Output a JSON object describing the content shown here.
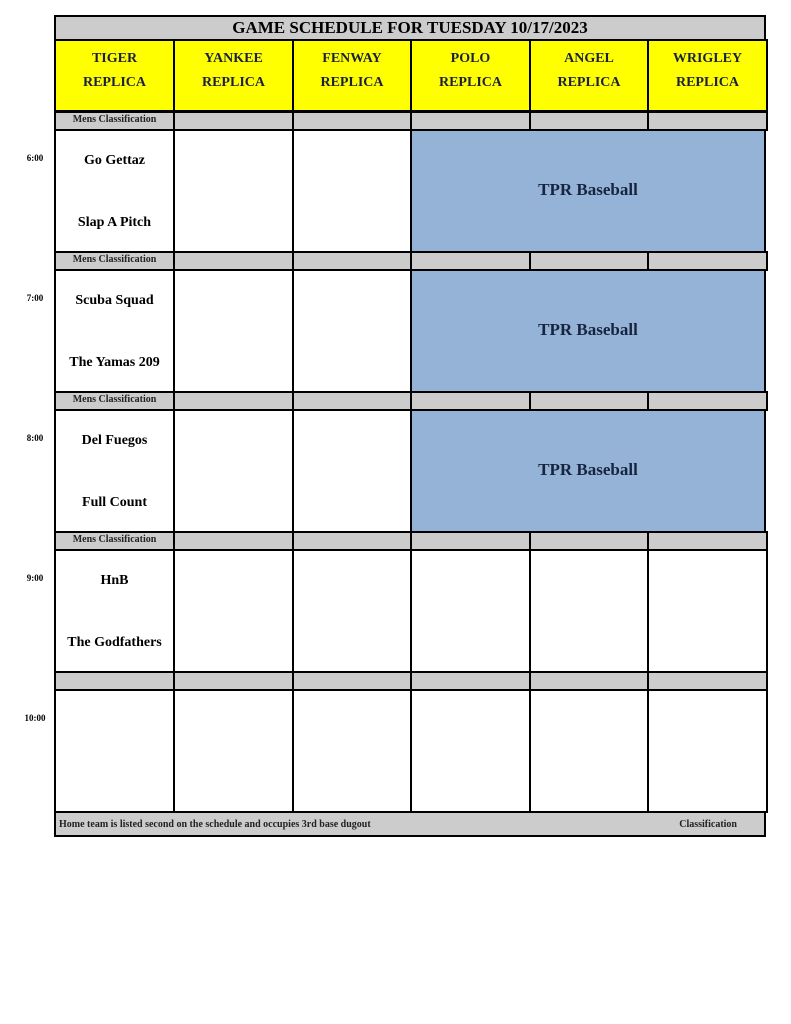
{
  "title": "GAME SCHEDULE FOR TUESDAY 10/17/2023",
  "fields": [
    {
      "name": "TIGER",
      "sub": "REPLICA"
    },
    {
      "name": "YANKEE",
      "sub": "REPLICA"
    },
    {
      "name": "FENWAY",
      "sub": "REPLICA"
    },
    {
      "name": "POLO",
      "sub": "REPLICA"
    },
    {
      "name": "ANGEL",
      "sub": "REPLICA"
    },
    {
      "name": "WRIGLEY",
      "sub": "REPLICA"
    }
  ],
  "slots": [
    {
      "time": "6:00",
      "classification": [
        "Mens Classification",
        "",
        "",
        "",
        "",
        ""
      ],
      "games": [
        [
          "Go Gettaz",
          "Slap A Pitch"
        ],
        [
          "",
          ""
        ],
        [
          "",
          ""
        ]
      ],
      "block": {
        "label": "TPR Baseball",
        "color": "#95b3d7"
      }
    },
    {
      "time": "7:00",
      "classification": [
        "Mens Classification",
        "",
        "",
        "",
        "",
        ""
      ],
      "games": [
        [
          "Scuba Squad",
          "The Yamas 209"
        ],
        [
          "",
          ""
        ],
        [
          "",
          ""
        ]
      ],
      "block": {
        "label": "TPR Baseball",
        "color": "#95b3d7"
      }
    },
    {
      "time": "8:00",
      "classification": [
        "Mens Classification",
        "",
        "",
        "",
        "",
        ""
      ],
      "games": [
        [
          "Del Fuegos",
          "Full Count"
        ],
        [
          "",
          ""
        ],
        [
          "",
          ""
        ]
      ],
      "block": {
        "label": "TPR Baseball",
        "color": "#95b3d7"
      }
    },
    {
      "time": "9:00",
      "classification": [
        "Mens Classification",
        "",
        "",
        "",
        "",
        ""
      ],
      "games": [
        [
          "HnB",
          "The Godfathers"
        ],
        [
          "",
          ""
        ],
        [
          "",
          ""
        ],
        [
          "",
          ""
        ],
        [
          "",
          ""
        ],
        [
          "",
          ""
        ]
      ],
      "block": null
    },
    {
      "time": "10:00",
      "classification": [
        "",
        "",
        "",
        "",
        "",
        ""
      ],
      "games": [
        [
          "",
          ""
        ],
        [
          "",
          ""
        ],
        [
          "",
          ""
        ],
        [
          "",
          ""
        ],
        [
          "",
          ""
        ],
        [
          "",
          ""
        ]
      ],
      "block": null
    }
  ],
  "footer": {
    "note": "Home team is listed second on the schedule and occupies 3rd base dugout",
    "right": "Classification"
  },
  "colors": {
    "header": "#ffff00",
    "classification_row": "#cccccc",
    "reserved_block": "#95b3d7"
  }
}
